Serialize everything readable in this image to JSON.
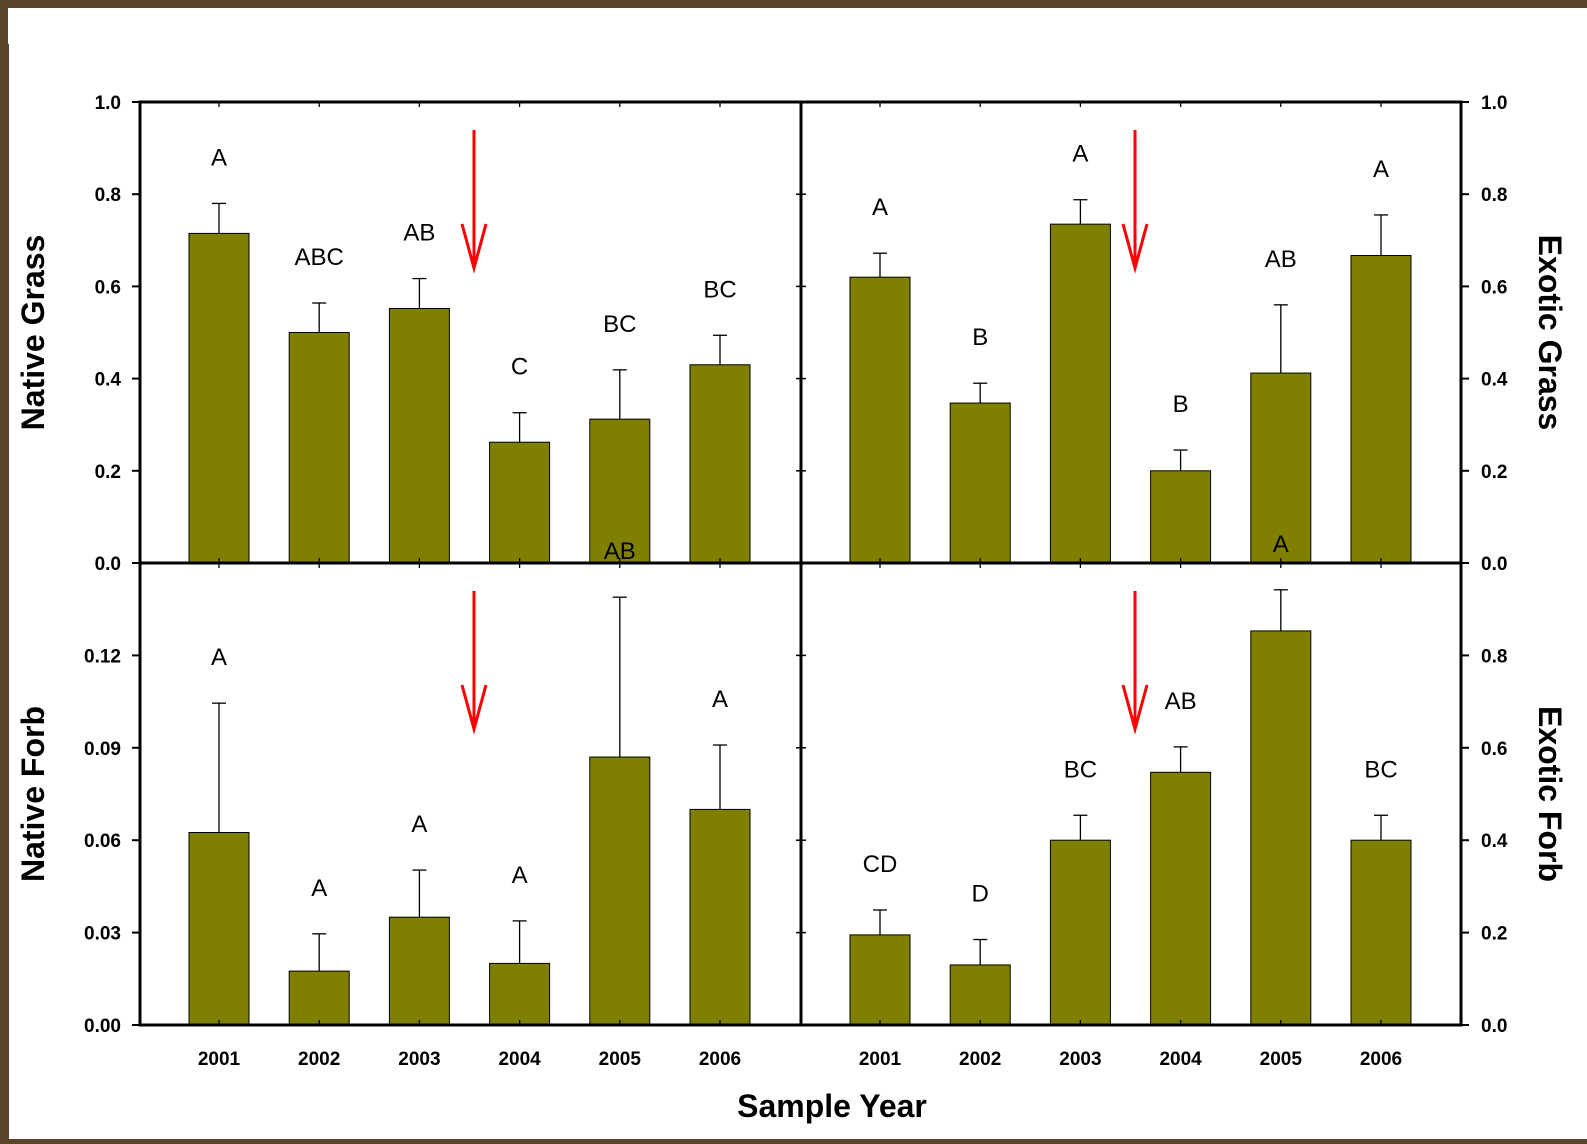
{
  "chart_data": [
    {
      "type": "bar",
      "ylabel": "Native Grass",
      "ylim": [
        0,
        1.0
      ],
      "yticks": [
        "0.0",
        "0.2",
        "0.4",
        "0.6",
        "0.8",
        "1.0"
      ],
      "y_axis_side": "left",
      "categories": [
        "2001",
        "2002",
        "2003",
        "2004",
        "2005",
        "2006"
      ],
      "values": [
        0.715,
        0.5,
        0.552,
        0.262,
        0.312,
        0.43
      ],
      "errors": [
        0.065,
        0.064,
        0.065,
        0.064,
        0.107,
        0.064
      ],
      "letters": [
        "A",
        "ABC",
        "AB",
        "C",
        "BC",
        "BC"
      ],
      "arrow_between": [
        "2003",
        "2004"
      ],
      "bar_color": "#808000",
      "arrow_color": "#ff0000"
    },
    {
      "type": "bar",
      "ylabel": "Exotic Grass",
      "ylim": [
        0,
        1.0
      ],
      "yticks": [
        "0.0",
        "0.2",
        "0.4",
        "0.6",
        "0.8",
        "1.0"
      ],
      "y_axis_side": "right",
      "categories": [
        "2001",
        "2002",
        "2003",
        "2004",
        "2005",
        "2006"
      ],
      "values": [
        0.62,
        0.347,
        0.735,
        0.2,
        0.412,
        0.667
      ],
      "errors": [
        0.052,
        0.043,
        0.053,
        0.045,
        0.148,
        0.088
      ],
      "letters": [
        "A",
        "B",
        "A",
        "B",
        "AB",
        "A"
      ],
      "arrow_between": [
        "2003",
        "2004"
      ],
      "bar_color": "#808000",
      "arrow_color": "#ff0000"
    },
    {
      "type": "bar",
      "ylabel": "Native Forb",
      "ylim": [
        0,
        0.15
      ],
      "yticks": [
        "0.00",
        "0.03",
        "0.06",
        "0.09",
        "0.12"
      ],
      "y_axis_side": "left",
      "categories": [
        "2001",
        "2002",
        "2003",
        "2004",
        "2005",
        "2006"
      ],
      "values": [
        0.0625,
        0.0175,
        0.035,
        0.02,
        0.087,
        0.07
      ],
      "errors": [
        0.042,
        0.0121,
        0.0153,
        0.0138,
        0.0519,
        0.0209
      ],
      "letters": [
        "A",
        "A",
        "A",
        "A",
        "AB",
        "A"
      ],
      "arrow_between": [
        "2003",
        "2004"
      ],
      "bar_color": "#808000",
      "arrow_color": "#ff0000"
    },
    {
      "type": "bar",
      "ylabel": "Exotic Forb",
      "ylim": [
        0,
        1.0
      ],
      "yticks": [
        "0.0",
        "0.2",
        "0.4",
        "0.6",
        "0.8"
      ],
      "y_axis_side": "right",
      "categories": [
        "2001",
        "2002",
        "2003",
        "2004",
        "2005",
        "2006"
      ],
      "values": [
        0.195,
        0.13,
        0.4,
        0.547,
        0.853,
        0.4
      ],
      "errors": [
        0.054,
        0.055,
        0.054,
        0.055,
        0.089,
        0.054
      ],
      "letters": [
        "CD",
        "D",
        "BC",
        "AB",
        "A",
        "BC"
      ],
      "arrow_between": [
        "2003",
        "2004"
      ],
      "bar_color": "#808000",
      "arrow_color": "#ff0000"
    }
  ],
  "xlabel": "Sample Year"
}
